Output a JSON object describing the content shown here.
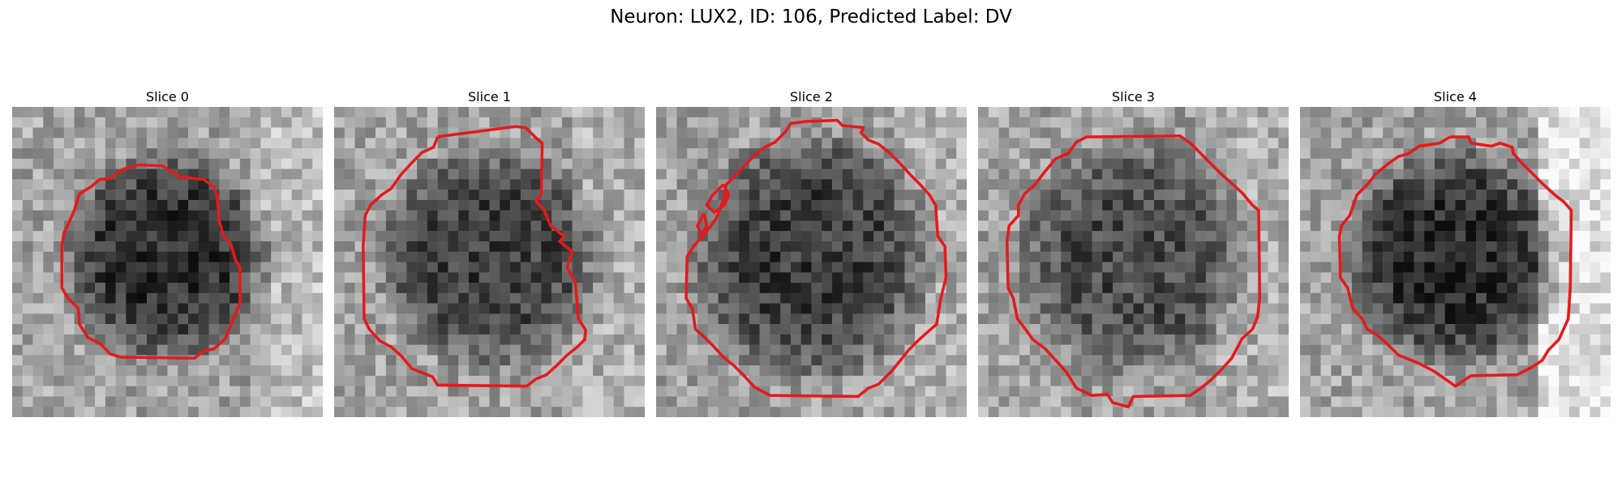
{
  "figure": {
    "title": "Neuron: LUX2, ID: 106, Predicted Label: DV"
  },
  "panels": [
    {
      "title": "Slice 0",
      "seed": 11,
      "center_dark": 0.6,
      "bright_right": 0.1,
      "radius": 0.36
    },
    {
      "title": "Slice 1",
      "seed": 23,
      "center_dark": 0.5,
      "bright_right": 0.05,
      "radius": 0.38
    },
    {
      "title": "Slice 2",
      "seed": 37,
      "center_dark": 0.52,
      "bright_right": 0.05,
      "radius": 0.42
    },
    {
      "title": "Slice 3",
      "seed": 41,
      "center_dark": 0.45,
      "bright_right": 0.05,
      "radius": 0.4
    },
    {
      "title": "Slice 4",
      "seed": 53,
      "center_dark": 0.62,
      "bright_right": 0.25,
      "radius": 0.37
    }
  ],
  "colors": {
    "contour": "#e41a1c"
  }
}
